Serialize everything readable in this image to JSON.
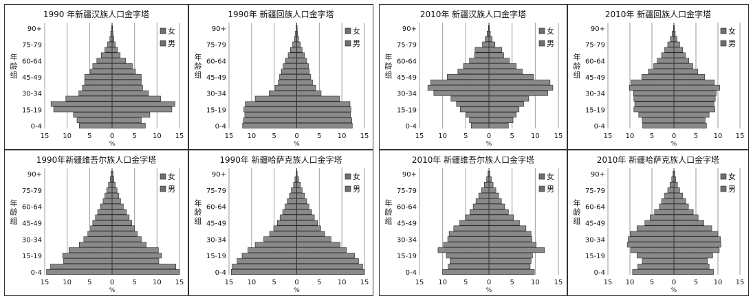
{
  "legend": [
    "女",
    "男"
  ],
  "age_axis_label": "年龄组",
  "x_axis_label": "%",
  "chart_data": [
    {
      "type": "bar",
      "orientation": "population-pyramid",
      "title": "1990 年新疆汉族人口金字塔",
      "categories": [
        "0-4",
        "5-9",
        "10-14",
        "15-19",
        "20-24",
        "25-29",
        "30-34",
        "35-39",
        "40-44",
        "45-49",
        "50-54",
        "55-59",
        "60-64",
        "65-69",
        "70-74",
        "75-79",
        "80-84",
        "85-89",
        "90+"
      ],
      "category_tick_labels": [
        "0-4",
        "15-19",
        "30-34",
        "45-49",
        "60-64",
        "75-79",
        "90+"
      ],
      "series": [
        {
          "name": "女",
          "values": [
            7.3,
            7.8,
            8.6,
            13.0,
            13.6,
            10.3,
            7.4,
            6.6,
            6.1,
            6.1,
            4.9,
            4.3,
            3.4,
            2.4,
            1.6,
            1.0,
            0.5,
            0.3,
            0.1
          ]
        },
        {
          "name": "男",
          "values": [
            7.4,
            6.5,
            8.4,
            13.3,
            14.0,
            10.8,
            8.1,
            6.8,
            6.5,
            6.5,
            5.2,
            4.5,
            3.0,
            1.8,
            1.2,
            0.7,
            0.4,
            0.2,
            0.1
          ]
        }
      ],
      "xlim": [
        -15,
        15
      ],
      "xticks": [
        15,
        10,
        5,
        0,
        5,
        10,
        15
      ],
      "xlabel": "%",
      "ylabel": "年龄组",
      "legend": [
        "女",
        "男"
      ],
      "legend_position": "top-right",
      "grid": true
    },
    {
      "type": "bar",
      "orientation": "population-pyramid",
      "title": "1990年 新疆回族人口金字塔",
      "categories": [
        "0-4",
        "5-9",
        "10-14",
        "15-19",
        "20-24",
        "25-29",
        "30-34",
        "35-39",
        "40-44",
        "45-49",
        "50-54",
        "55-59",
        "60-64",
        "65-69",
        "70-74",
        "75-79",
        "80-84",
        "85-89",
        "90+"
      ],
      "category_tick_labels": [
        "0-4",
        "15-19",
        "30-34",
        "45-49",
        "60-64",
        "75-79",
        "90+"
      ],
      "series": [
        {
          "name": "女",
          "values": [
            12.0,
            11.8,
            11.5,
            11.7,
            11.4,
            9.2,
            6.1,
            4.8,
            4.1,
            3.8,
            3.4,
            3.0,
            2.5,
            1.9,
            1.4,
            0.9,
            0.5,
            0.3,
            0.1
          ]
        },
        {
          "name": "男",
          "values": [
            12.3,
            12.2,
            11.9,
            12.0,
            11.8,
            9.5,
            5.4,
            4.2,
            3.5,
            3.1,
            2.8,
            2.6,
            2.2,
            1.7,
            1.2,
            0.8,
            0.4,
            0.2,
            0.1
          ]
        }
      ],
      "xlim": [
        -15,
        15
      ],
      "xticks": [
        15,
        10,
        5,
        0,
        5,
        10,
        15
      ],
      "xlabel": "%",
      "ylabel": "年龄组",
      "legend": [
        "女",
        "男"
      ],
      "legend_position": "top-right",
      "grid": true
    },
    {
      "type": "bar",
      "orientation": "population-pyramid",
      "title": "2010年 新疆汉族人口金字塔",
      "categories": [
        "0-4",
        "5-9",
        "10-14",
        "15-19",
        "20-24",
        "25-29",
        "30-34",
        "35-39",
        "40-44",
        "45-49",
        "50-54",
        "55-59",
        "60-64",
        "65-69",
        "70-74",
        "75-79",
        "80-84",
        "85-89",
        "90+"
      ],
      "category_tick_labels": [
        "0-4",
        "15-19",
        "30-34",
        "45-49",
        "60-64",
        "75-79",
        "90+"
      ],
      "series": [
        {
          "name": "女",
          "values": [
            3.8,
            4.2,
            5.0,
            6.2,
            7.0,
            8.2,
            11.9,
            13.2,
            12.6,
            9.0,
            6.7,
            5.5,
            4.2,
            3.1,
            3.0,
            1.4,
            0.8,
            0.4,
            0.1
          ]
        },
        {
          "name": "男",
          "values": [
            4.2,
            5.2,
            5.9,
            6.5,
            7.5,
            8.6,
            12.7,
            13.8,
            13.2,
            9.6,
            7.2,
            5.9,
            4.4,
            3.2,
            2.8,
            1.3,
            0.7,
            0.3,
            0.1
          ]
        }
      ],
      "xlim": [
        -15,
        15
      ],
      "xticks": [
        15,
        10,
        5,
        0,
        5,
        10,
        15
      ],
      "xlabel": "%",
      "ylabel": "年龄组",
      "legend": [
        "女",
        "男"
      ],
      "legend_position": "top-right",
      "grid": true
    },
    {
      "type": "bar",
      "orientation": "population-pyramid",
      "title": "2010年 新疆回族人口金字塔",
      "categories": [
        "0-4",
        "5-9",
        "10-14",
        "15-19",
        "20-24",
        "25-29",
        "30-34",
        "35-39",
        "40-44",
        "45-49",
        "50-54",
        "55-59",
        "60-64",
        "65-69",
        "70-74",
        "75-79",
        "80-84",
        "85-89",
        "90+"
      ],
      "category_tick_labels": [
        "0-4",
        "15-19",
        "30-34",
        "45-49",
        "60-64",
        "75-79",
        "90+"
      ],
      "series": [
        {
          "name": "女",
          "values": [
            7.1,
            7.2,
            8.0,
            9.1,
            8.9,
            9.1,
            9.2,
            10.1,
            9.7,
            7.3,
            5.8,
            4.6,
            3.8,
            2.8,
            2.1,
            1.4,
            0.8,
            0.4,
            0.1
          ]
        },
        {
          "name": "男",
          "values": [
            7.4,
            7.1,
            8.0,
            9.3,
            9.1,
            9.4,
            9.6,
            10.4,
            9.2,
            7.0,
            5.4,
            4.3,
            3.4,
            2.6,
            2.0,
            1.3,
            0.7,
            0.3,
            0.1
          ]
        }
      ],
      "xlim": [
        -15,
        15
      ],
      "xticks": [
        15,
        10,
        5,
        0,
        5,
        10,
        15
      ],
      "xlabel": "%",
      "ylabel": "年龄组",
      "legend": [
        "女",
        "男"
      ],
      "legend_position": "top-right",
      "grid": true
    },
    {
      "type": "bar",
      "orientation": "population-pyramid",
      "title": "1990年新疆维吾尔族人口金字塔",
      "categories": [
        "0-4",
        "5-9",
        "10-14",
        "15-19",
        "20-24",
        "25-29",
        "30-34",
        "35-39",
        "40-44",
        "45-49",
        "50-54",
        "55-59",
        "60-64",
        "65-69",
        "70-74",
        "75-79",
        "80-84",
        "85-89",
        "90+"
      ],
      "category_tick_labels": [
        "0-4",
        "15-19",
        "30-34",
        "45-49",
        "60-64",
        "75-79",
        "90+"
      ],
      "series": [
        {
          "name": "女",
          "values": [
            14.6,
            13.7,
            10.8,
            11.0,
            9.6,
            7.3,
            6.3,
            5.4,
            4.8,
            4.3,
            3.7,
            3.2,
            2.6,
            2.0,
            1.6,
            1.2,
            0.8,
            0.4,
            0.2
          ]
        },
        {
          "name": "男",
          "values": [
            15.0,
            14.2,
            10.4,
            11.0,
            10.3,
            7.6,
            6.5,
            5.6,
            5.0,
            4.4,
            3.8,
            3.2,
            2.5,
            1.9,
            1.5,
            1.1,
            0.7,
            0.4,
            0.2
          ]
        }
      ],
      "xlim": [
        -15,
        15
      ],
      "xticks": [
        15,
        10,
        5,
        0,
        5,
        10,
        15
      ],
      "xlabel": "%",
      "ylabel": "年龄组",
      "legend": [
        "女",
        "男"
      ],
      "legend_position": "top-right",
      "grid": true
    },
    {
      "type": "bar",
      "orientation": "population-pyramid",
      "title": "1990年 新疆哈萨克族人口金字塔",
      "categories": [
        "0-4",
        "5-9",
        "10-14",
        "15-19",
        "20-24",
        "25-29",
        "30-34",
        "35-39",
        "40-44",
        "45-49",
        "50-54",
        "55-59",
        "60-64",
        "65-69",
        "70-74",
        "75-79",
        "80-84",
        "85-89",
        "90+"
      ],
      "category_tick_labels": [
        "0-4",
        "15-19",
        "30-34",
        "45-49",
        "60-64",
        "75-79",
        "90+"
      ],
      "series": [
        {
          "name": "女",
          "values": [
            14.5,
            14.3,
            13.2,
            12.1,
            10.8,
            9.2,
            7.3,
            6.0,
            5.1,
            4.3,
            3.7,
            3.1,
            2.6,
            2.1,
            1.6,
            1.2,
            0.7,
            0.4,
            0.1
          ]
        },
        {
          "name": "男",
          "values": [
            15.0,
            14.6,
            13.7,
            12.8,
            11.0,
            9.6,
            7.6,
            6.2,
            5.3,
            4.6,
            3.9,
            3.3,
            2.7,
            2.2,
            1.7,
            1.2,
            0.8,
            0.4,
            0.1
          ]
        }
      ],
      "xlim": [
        -15,
        15
      ],
      "xticks": [
        15,
        10,
        5,
        0,
        5,
        10,
        15
      ],
      "xlabel": "%",
      "ylabel": "年龄组",
      "legend": [
        "女",
        "男"
      ],
      "legend_position": "top-right",
      "grid": true
    },
    {
      "type": "bar",
      "orientation": "population-pyramid",
      "title": "2010年 新疆维吾尔族人口金字塔",
      "categories": [
        "0-4",
        "5-9",
        "10-14",
        "15-19",
        "20-24",
        "25-29",
        "30-34",
        "35-39",
        "40-44",
        "45-49",
        "50-54",
        "55-59",
        "60-64",
        "65-69",
        "70-74",
        "75-79",
        "80-84",
        "85-89",
        "90+"
      ],
      "category_tick_labels": [
        "0-4",
        "15-19",
        "30-34",
        "45-49",
        "60-64",
        "75-79",
        "90+"
      ],
      "series": [
        {
          "name": "女",
          "values": [
            10.0,
            8.8,
            8.4,
            9.2,
            11.0,
            9.8,
            8.9,
            8.6,
            7.6,
            6.3,
            5.1,
            4.1,
            3.4,
            2.8,
            2.2,
            1.6,
            1.0,
            0.5,
            0.2
          ]
        },
        {
          "name": "男",
          "values": [
            9.8,
            8.9,
            9.1,
            9.4,
            12.0,
            10.2,
            9.3,
            9.1,
            8.0,
            6.6,
            5.3,
            4.2,
            3.4,
            2.7,
            2.1,
            1.5,
            0.9,
            0.5,
            0.2
          ]
        }
      ],
      "xlim": [
        -15,
        15
      ],
      "xticks": [
        15,
        10,
        5,
        0,
        5,
        10,
        15
      ],
      "xlabel": "%",
      "ylabel": "年龄组",
      "legend": [
        "女",
        "男"
      ],
      "legend_position": "top-right",
      "grid": true
    },
    {
      "type": "bar",
      "orientation": "population-pyramid",
      "title": "2010年 新疆哈萨克族人口金字塔",
      "categories": [
        "0-4",
        "5-9",
        "10-14",
        "15-19",
        "20-24",
        "25-29",
        "30-34",
        "35-39",
        "40-44",
        "45-49",
        "50-54",
        "55-59",
        "60-64",
        "65-69",
        "70-74",
        "75-79",
        "80-84",
        "85-89",
        "90+"
      ],
      "category_tick_labels": [
        "0-4",
        "15-19",
        "30-34",
        "45-49",
        "60-64",
        "75-79",
        "90+"
      ],
      "series": [
        {
          "name": "女",
          "values": [
            9.4,
            8.2,
            7.2,
            8.4,
            9.8,
            10.6,
            10.4,
            9.9,
            8.4,
            6.6,
            5.4,
            4.4,
            3.3,
            2.8,
            2.1,
            1.4,
            0.9,
            0.5,
            0.2
          ]
        },
        {
          "name": "男",
          "values": [
            9.0,
            8.0,
            7.6,
            8.8,
            10.3,
            10.7,
            10.6,
            10.0,
            8.6,
            6.8,
            5.5,
            4.4,
            3.3,
            2.7,
            2.0,
            1.3,
            0.8,
            0.4,
            0.2
          ]
        }
      ],
      "xlim": [
        -15,
        15
      ],
      "xticks": [
        15,
        10,
        5,
        0,
        5,
        10,
        15
      ],
      "xlabel": "%",
      "ylabel": "年龄组",
      "legend": [
        "女",
        "男"
      ],
      "legend_position": "top-right",
      "grid": true
    }
  ]
}
